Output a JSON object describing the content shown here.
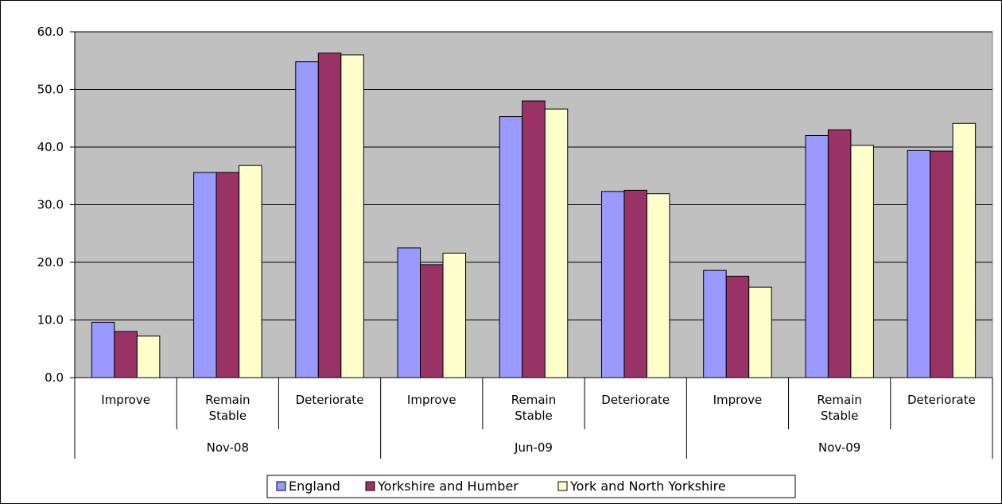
{
  "chart_data": {
    "type": "bar",
    "title": "",
    "xlabel": "",
    "ylabel": "",
    "ylim": [
      0,
      60
    ],
    "y_ticks": [
      "0.0",
      "10.0",
      "20.0",
      "30.0",
      "40.0",
      "50.0",
      "60.0"
    ],
    "grid": true,
    "legend_position": "bottom",
    "groups": [
      "Nov-08",
      "Jun-09",
      "Nov-09"
    ],
    "categories": [
      "Improve",
      "Remain Stable",
      "Deteriorate",
      "Improve",
      "Remain Stable",
      "Deteriorate",
      "Improve",
      "Remain Stable",
      "Deteriorate"
    ],
    "series": [
      {
        "name": "England",
        "color": "#9999ff",
        "values": [
          9.6,
          35.6,
          54.8,
          22.5,
          45.3,
          32.3,
          18.6,
          42.0,
          39.4
        ]
      },
      {
        "name": "Yorkshire and Humber",
        "color": "#993366",
        "values": [
          8.0,
          35.6,
          56.3,
          19.6,
          48.0,
          32.5,
          17.6,
          43.0,
          39.3
        ]
      },
      {
        "name": "York and North Yorkshire",
        "color": "#ffffcc",
        "values": [
          7.2,
          36.8,
          56.0,
          21.6,
          46.6,
          31.9,
          15.7,
          40.3,
          44.1
        ]
      }
    ],
    "plot_background": "#c0c0c0"
  }
}
